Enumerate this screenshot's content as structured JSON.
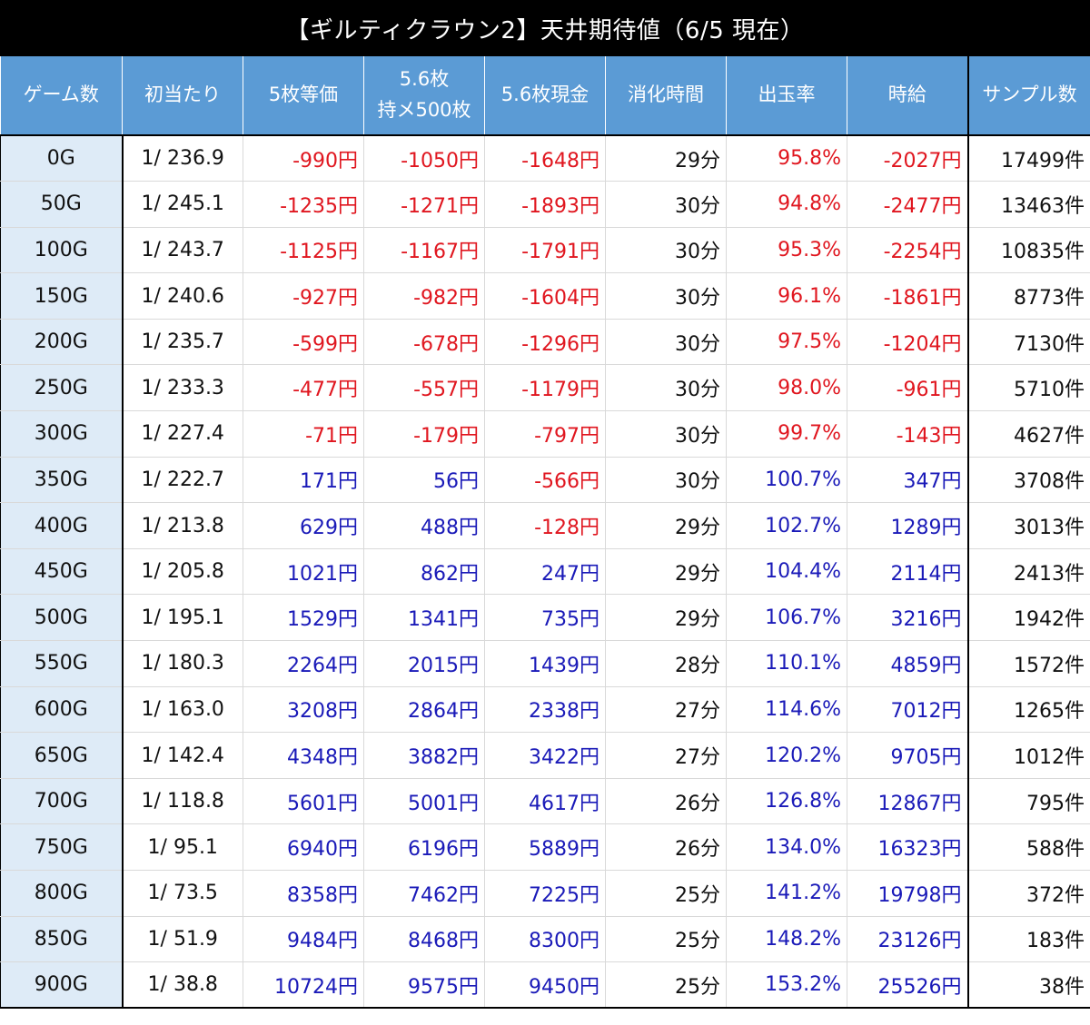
{
  "title": "【ギルティクラウン2】天井期待値（6/5 現在）",
  "chart_data": {
    "type": "table",
    "headers": [
      "ゲーム数",
      "初当たり",
      "5枚等価",
      "5.6枚\n持メ500枚",
      "5.6枚現金",
      "消化時間",
      "出玉率",
      "時給",
      "サンプル数"
    ],
    "header_lines": [
      [
        "ゲーム数"
      ],
      [
        "初当たり"
      ],
      [
        "5枚等価"
      ],
      [
        "5.6枚",
        "持メ500枚"
      ],
      [
        "5.6枚現金"
      ],
      [
        "消化時間"
      ],
      [
        "出玉率"
      ],
      [
        "時給"
      ],
      [
        "サンプル数"
      ]
    ],
    "rows": [
      [
        "0G",
        "1/ 236.9",
        "-990円",
        "-1050円",
        "-1648円",
        "29分",
        "95.8%",
        "-2027円",
        "17499件"
      ],
      [
        "50G",
        "1/ 245.1",
        "-1235円",
        "-1271円",
        "-1893円",
        "30分",
        "94.8%",
        "-2477円",
        "13463件"
      ],
      [
        "100G",
        "1/ 243.7",
        "-1125円",
        "-1167円",
        "-1791円",
        "30分",
        "95.3%",
        "-2254円",
        "10835件"
      ],
      [
        "150G",
        "1/ 240.6",
        "-927円",
        "-982円",
        "-1604円",
        "30分",
        "96.1%",
        "-1861円",
        "8773件"
      ],
      [
        "200G",
        "1/ 235.7",
        "-599円",
        "-678円",
        "-1296円",
        "30分",
        "97.5%",
        "-1204円",
        "7130件"
      ],
      [
        "250G",
        "1/ 233.3",
        "-477円",
        "-557円",
        "-1179円",
        "30分",
        "98.0%",
        "-961円",
        "5710件"
      ],
      [
        "300G",
        "1/ 227.4",
        "-71円",
        "-179円",
        "-797円",
        "30分",
        "99.7%",
        "-143円",
        "4627件"
      ],
      [
        "350G",
        "1/ 222.7",
        "171円",
        "56円",
        "-566円",
        "30分",
        "100.7%",
        "347円",
        "3708件"
      ],
      [
        "400G",
        "1/ 213.8",
        "629円",
        "488円",
        "-128円",
        "29分",
        "102.7%",
        "1289円",
        "3013件"
      ],
      [
        "450G",
        "1/ 205.8",
        "1021円",
        "862円",
        "247円",
        "29分",
        "104.4%",
        "2114円",
        "2413件"
      ],
      [
        "500G",
        "1/ 195.1",
        "1529円",
        "1341円",
        "735円",
        "29分",
        "106.7%",
        "3216円",
        "1942件"
      ],
      [
        "550G",
        "1/ 180.3",
        "2264円",
        "2015円",
        "1439円",
        "28分",
        "110.1%",
        "4859円",
        "1572件"
      ],
      [
        "600G",
        "1/ 163.0",
        "3208円",
        "2864円",
        "2338円",
        "27分",
        "114.6%",
        "7012円",
        "1265件"
      ],
      [
        "650G",
        "1/ 142.4",
        "4348円",
        "3882円",
        "3422円",
        "27分",
        "120.2%",
        "9705円",
        "1012件"
      ],
      [
        "700G",
        "1/ 118.8",
        "5601円",
        "5001円",
        "4617円",
        "26分",
        "126.8%",
        "12867円",
        "795件"
      ],
      [
        "750G",
        "1/ 95.1",
        "6940円",
        "6196円",
        "5889円",
        "26分",
        "134.0%",
        "16323円",
        "588件"
      ],
      [
        "800G",
        "1/ 73.5",
        "8358円",
        "7462円",
        "7225円",
        "25分",
        "141.2%",
        "19798円",
        "372件"
      ],
      [
        "850G",
        "1/ 51.9",
        "9484円",
        "8468円",
        "8300円",
        "25分",
        "148.2%",
        "23126円",
        "183件"
      ],
      [
        "900G",
        "1/ 38.8",
        "10724円",
        "9575円",
        "9450円",
        "25分",
        "153.2%",
        "25526円",
        "38件"
      ]
    ]
  },
  "colors": {
    "header_bg": "#5b9bd5",
    "first_col_bg": "#deebf7",
    "negative": "#e0161f",
    "positive": "#1a1ab8",
    "title_bg": "#000000"
  }
}
